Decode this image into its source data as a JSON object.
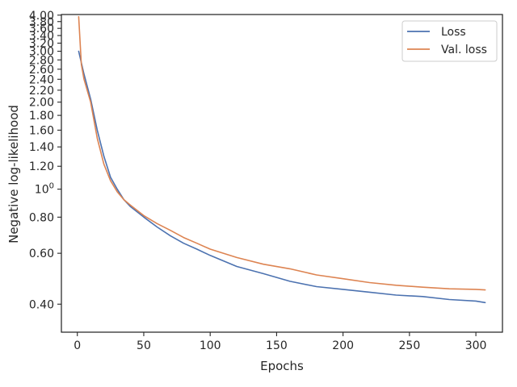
{
  "chart_data": {
    "type": "line",
    "xlabel": "Epochs",
    "ylabel": "Negative log-likelihood",
    "xlim": [
      -12,
      320
    ],
    "ylim_log": [
      0.32,
      4.02
    ],
    "y_scale": "log",
    "x_ticks": [
      0,
      50,
      100,
      150,
      200,
      250,
      300
    ],
    "x_tick_labels": [
      "0",
      "50",
      "100",
      "150",
      "200",
      "250",
      "300"
    ],
    "y_ticks": [
      0.4,
      0.6,
      0.8,
      1.0,
      1.2,
      1.4,
      1.6,
      1.8,
      2.0,
      2.2,
      2.4,
      2.6,
      2.8,
      3.0,
      3.2,
      3.4,
      3.6,
      3.8,
      4.0
    ],
    "y_tick_labels": [
      "0.40",
      "0.60",
      "0.80",
      "10^0",
      "1.20",
      "1.40",
      "1.60",
      "1.80",
      "2.00",
      "2.20",
      "2.40",
      "2.60",
      "2.80",
      "3.00",
      "3.20",
      "3.40",
      "3.60",
      "3.80",
      "4.00"
    ],
    "series": [
      {
        "name": "Loss",
        "color": "#4c72b0",
        "x": [
          1,
          5,
          10,
          15,
          20,
          25,
          30,
          35,
          40,
          50,
          60,
          70,
          80,
          90,
          100,
          120,
          140,
          160,
          180,
          200,
          220,
          240,
          260,
          280,
          300,
          307
        ],
        "y": [
          3.0,
          2.5,
          2.05,
          1.6,
          1.3,
          1.1,
          1.0,
          0.92,
          0.87,
          0.8,
          0.74,
          0.69,
          0.65,
          0.62,
          0.59,
          0.54,
          0.51,
          0.48,
          0.46,
          0.45,
          0.44,
          0.43,
          0.425,
          0.415,
          0.41,
          0.405
        ]
      },
      {
        "name": "Val. loss",
        "color": "#dd8452",
        "x": [
          1,
          3,
          5,
          10,
          15,
          20,
          25,
          30,
          35,
          40,
          50,
          60,
          70,
          80,
          90,
          100,
          120,
          140,
          160,
          180,
          200,
          220,
          240,
          260,
          280,
          300,
          307
        ],
        "y": [
          3.95,
          2.7,
          2.4,
          2.0,
          1.5,
          1.22,
          1.07,
          0.98,
          0.92,
          0.88,
          0.81,
          0.76,
          0.72,
          0.68,
          0.65,
          0.62,
          0.58,
          0.55,
          0.53,
          0.505,
          0.49,
          0.475,
          0.465,
          0.458,
          0.452,
          0.45,
          0.448
        ]
      }
    ],
    "legend": {
      "placement": "top-right"
    }
  }
}
